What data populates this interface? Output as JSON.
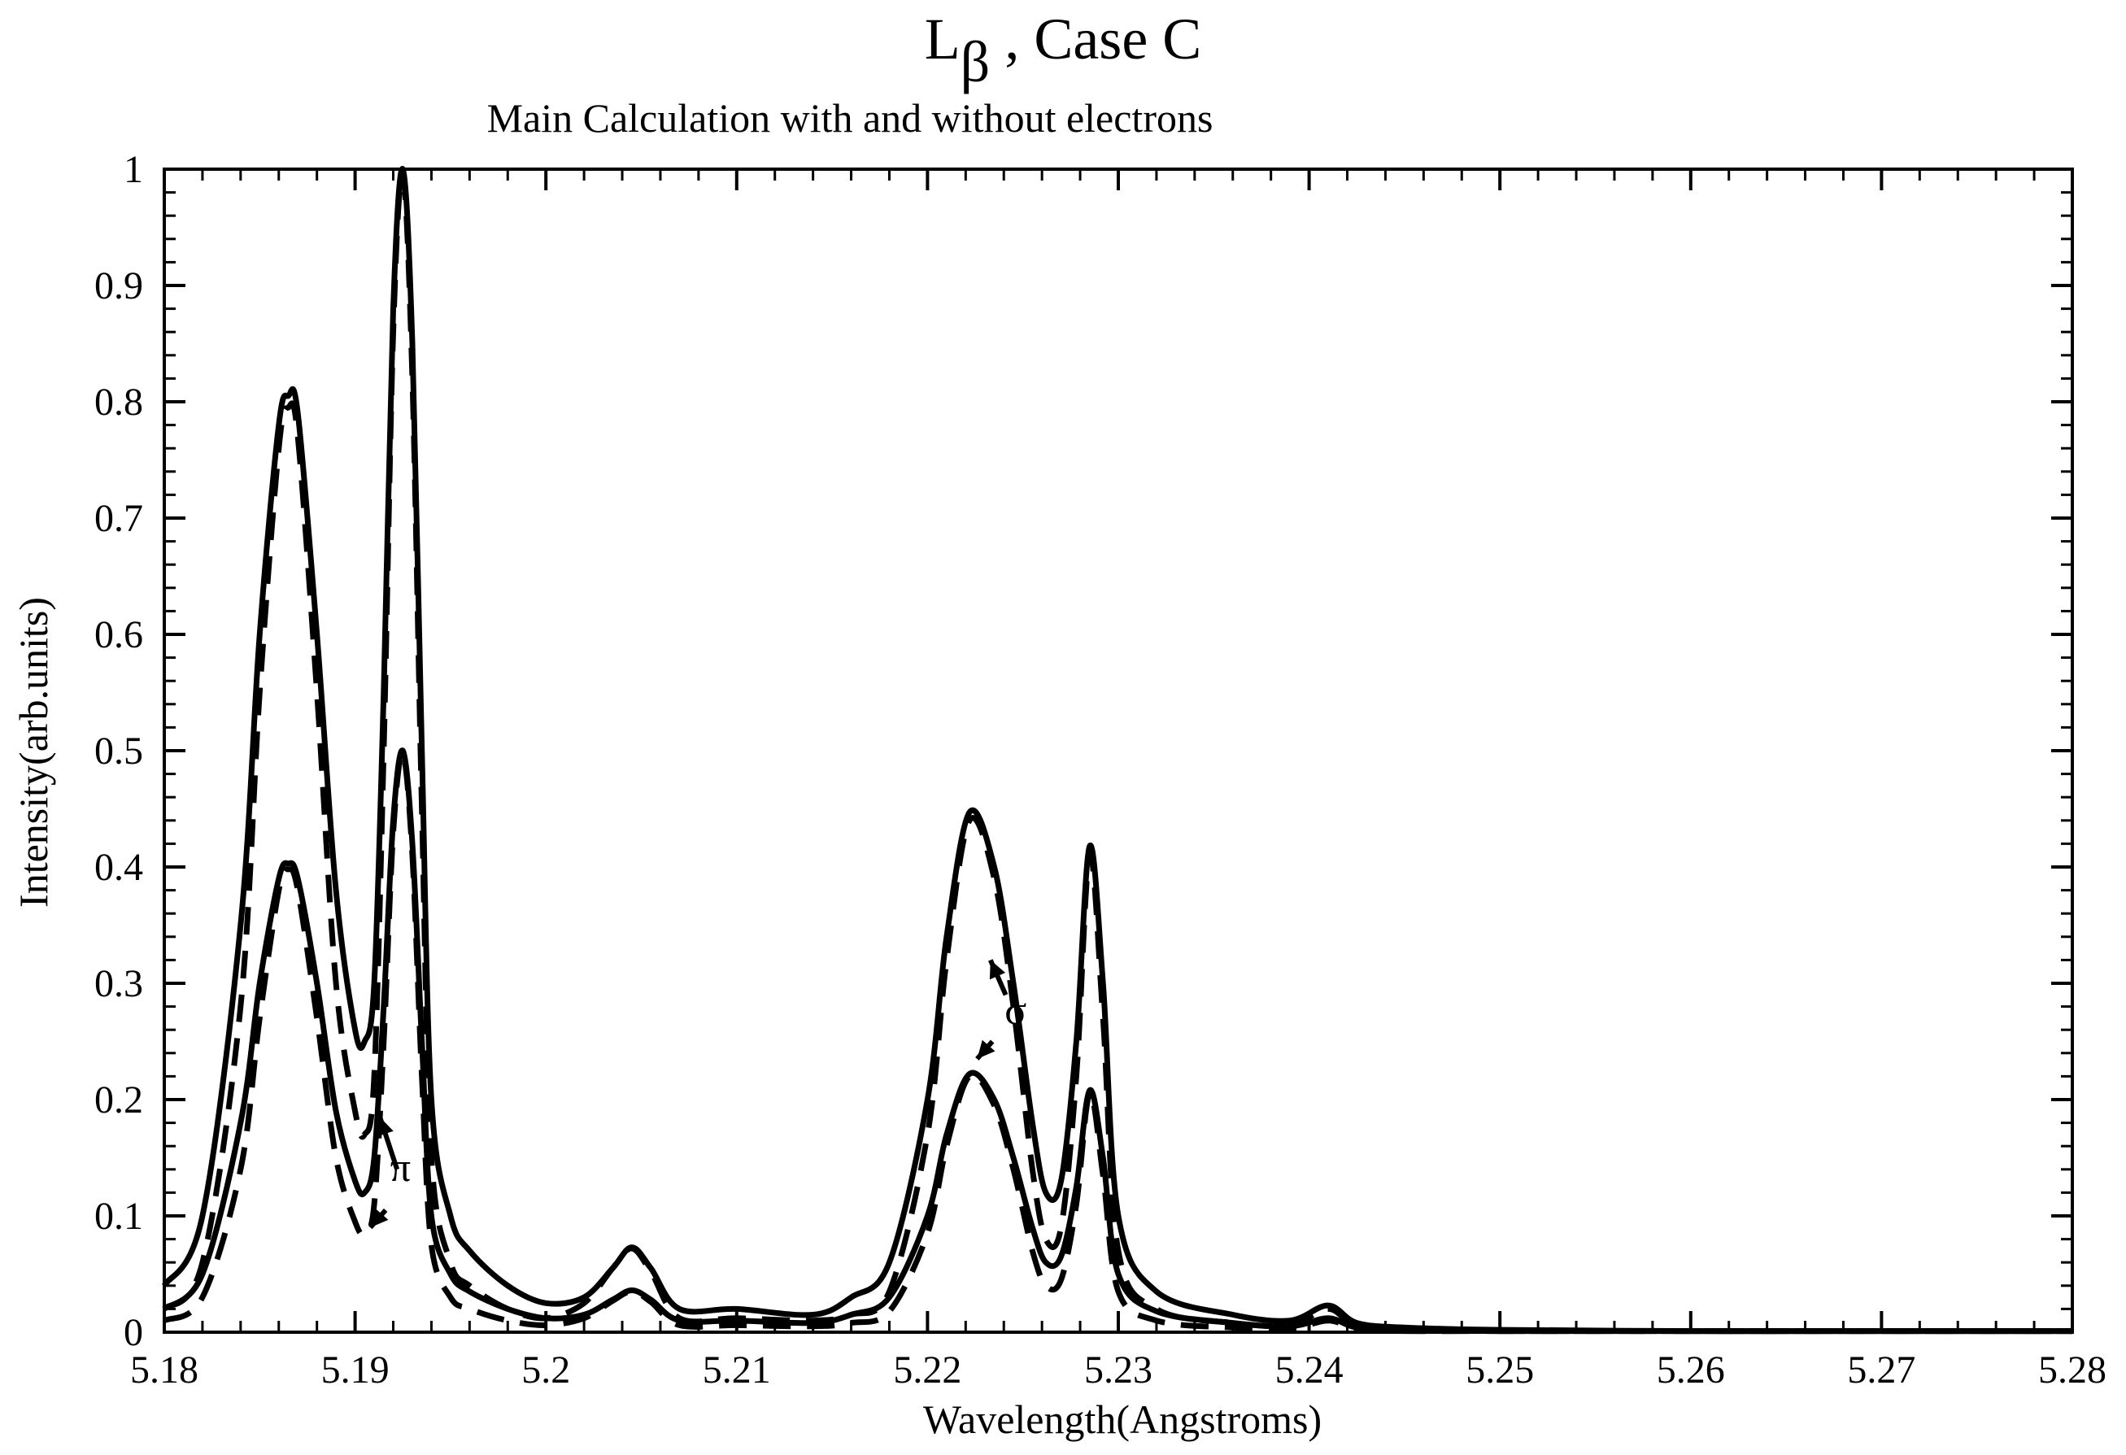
{
  "chart_data": {
    "type": "line",
    "title": "L",
    "title_subscript": "β",
    "title_suffix": " , Case C",
    "subtitle": "Main Calculation with  and without electrons",
    "xlabel": "Wavelength(Angstroms)",
    "ylabel": "Intensity(arb.units)",
    "xlim": [
      5.18,
      5.28
    ],
    "ylim": [
      0,
      1
    ],
    "x_ticks": [
      "5.18",
      "5.19",
      "5.2",
      "5.21",
      "5.22",
      "5.23",
      "5.24",
      "5.25",
      "5.26",
      "5.27",
      "5.28"
    ],
    "y_ticks": [
      "0",
      "0.1",
      "0.2",
      "0.3",
      "0.4",
      "0.5",
      "0.6",
      "0.7",
      "0.8",
      "0.9",
      "1"
    ],
    "grid": false,
    "legend": "none",
    "annotations": [
      {
        "text": "π",
        "x": 5.1915,
        "y": 0.13
      },
      {
        "text": "σ",
        "x": 5.2237,
        "y": 0.265
      }
    ],
    "series": [
      {
        "style": "solid",
        "x": [
          5.18,
          5.182,
          5.184,
          5.185,
          5.186,
          5.1865,
          5.187,
          5.188,
          5.189,
          5.19,
          5.1905,
          5.191,
          5.1915,
          5.192,
          5.1925,
          5.193,
          5.1935,
          5.194,
          5.195,
          5.196,
          5.198,
          5.2,
          5.202,
          5.2035,
          5.2045,
          5.2055,
          5.207,
          5.21,
          5.214,
          5.216,
          5.218,
          5.22,
          5.221,
          5.2222,
          5.2235,
          5.2245,
          5.2255,
          5.2262,
          5.227,
          5.2278,
          5.2285,
          5.2292,
          5.23,
          5.232,
          5.236,
          5.239,
          5.241,
          5.2425,
          5.245,
          5.25,
          5.26,
          5.27,
          5.28
        ],
        "y": [
          0.04,
          0.1,
          0.35,
          0.6,
          0.78,
          0.805,
          0.79,
          0.6,
          0.38,
          0.26,
          0.25,
          0.3,
          0.55,
          0.88,
          1.0,
          0.85,
          0.5,
          0.2,
          0.1,
          0.07,
          0.04,
          0.025,
          0.03,
          0.055,
          0.073,
          0.055,
          0.02,
          0.02,
          0.015,
          0.03,
          0.06,
          0.2,
          0.34,
          0.447,
          0.4,
          0.3,
          0.18,
          0.12,
          0.13,
          0.25,
          0.418,
          0.3,
          0.1,
          0.035,
          0.015,
          0.01,
          0.023,
          0.008,
          0.004,
          0.002,
          0.001,
          0.001,
          0.001
        ]
      },
      {
        "style": "dashed",
        "x": [
          5.18,
          5.182,
          5.184,
          5.185,
          5.186,
          5.1865,
          5.187,
          5.188,
          5.189,
          5.19,
          5.1905,
          5.191,
          5.1915,
          5.192,
          5.1925,
          5.193,
          5.1935,
          5.194,
          5.195,
          5.196,
          5.198,
          5.2,
          5.202,
          5.2035,
          5.2045,
          5.2055,
          5.207,
          5.21,
          5.214,
          5.216,
          5.218,
          5.22,
          5.221,
          5.2222,
          5.2235,
          5.2245,
          5.2255,
          5.2262,
          5.227,
          5.2278,
          5.2285,
          5.2292,
          5.23,
          5.232,
          5.236,
          5.239,
          5.241,
          5.2425,
          5.245,
          5.25,
          5.26,
          5.27,
          5.28
        ],
        "y": [
          0.02,
          0.06,
          0.28,
          0.55,
          0.76,
          0.795,
          0.77,
          0.55,
          0.3,
          0.19,
          0.17,
          0.22,
          0.5,
          0.86,
          0.995,
          0.82,
          0.45,
          0.15,
          0.06,
          0.04,
          0.02,
          0.012,
          0.025,
          0.055,
          0.072,
          0.052,
          0.012,
          0.012,
          0.01,
          0.015,
          0.035,
          0.17,
          0.32,
          0.44,
          0.39,
          0.28,
          0.14,
          0.08,
          0.09,
          0.22,
          0.41,
          0.27,
          0.07,
          0.02,
          0.008,
          0.006,
          0.02,
          0.005,
          0.002,
          0.001,
          0.001,
          0.001,
          0.001
        ]
      },
      {
        "style": "solid",
        "x": [
          5.18,
          5.182,
          5.184,
          5.185,
          5.186,
          5.1865,
          5.187,
          5.188,
          5.189,
          5.19,
          5.1905,
          5.191,
          5.1915,
          5.192,
          5.1925,
          5.193,
          5.1935,
          5.194,
          5.195,
          5.196,
          5.198,
          5.2,
          5.202,
          5.2035,
          5.2045,
          5.2055,
          5.207,
          5.21,
          5.214,
          5.216,
          5.218,
          5.22,
          5.221,
          5.2222,
          5.2235,
          5.2245,
          5.2255,
          5.2262,
          5.227,
          5.2278,
          5.2285,
          5.2292,
          5.23,
          5.232,
          5.236,
          5.239,
          5.241,
          5.2425,
          5.245,
          5.25,
          5.26,
          5.27,
          5.28
        ],
        "y": [
          0.02,
          0.05,
          0.18,
          0.3,
          0.39,
          0.403,
          0.39,
          0.3,
          0.19,
          0.13,
          0.12,
          0.15,
          0.28,
          0.44,
          0.5,
          0.42,
          0.25,
          0.1,
          0.05,
          0.035,
          0.02,
          0.012,
          0.015,
          0.028,
          0.036,
          0.028,
          0.01,
          0.01,
          0.008,
          0.015,
          0.03,
          0.1,
          0.17,
          0.222,
          0.2,
          0.15,
          0.09,
          0.06,
          0.065,
          0.125,
          0.208,
          0.15,
          0.05,
          0.018,
          0.008,
          0.005,
          0.012,
          0.004,
          0.002,
          0.001,
          0.001,
          0.001,
          0.001
        ]
      },
      {
        "style": "dashed",
        "x": [
          5.18,
          5.182,
          5.184,
          5.185,
          5.186,
          5.1865,
          5.187,
          5.188,
          5.189,
          5.19,
          5.1905,
          5.191,
          5.1915,
          5.192,
          5.1925,
          5.193,
          5.1935,
          5.194,
          5.195,
          5.196,
          5.198,
          5.2,
          5.202,
          5.2035,
          5.2045,
          5.2055,
          5.207,
          5.21,
          5.214,
          5.216,
          5.218,
          5.22,
          5.221,
          5.2222,
          5.2235,
          5.2245,
          5.2255,
          5.2262,
          5.227,
          5.2278,
          5.2285,
          5.2292,
          5.23,
          5.232,
          5.236,
          5.239,
          5.241,
          5.2425,
          5.245,
          5.25,
          5.26,
          5.27,
          5.28
        ],
        "y": [
          0.01,
          0.03,
          0.14,
          0.27,
          0.38,
          0.398,
          0.38,
          0.27,
          0.15,
          0.095,
          0.085,
          0.11,
          0.25,
          0.43,
          0.497,
          0.41,
          0.22,
          0.075,
          0.03,
          0.02,
          0.01,
          0.006,
          0.012,
          0.027,
          0.035,
          0.026,
          0.006,
          0.006,
          0.005,
          0.008,
          0.018,
          0.085,
          0.16,
          0.22,
          0.195,
          0.14,
          0.07,
          0.04,
          0.045,
          0.11,
          0.205,
          0.135,
          0.035,
          0.01,
          0.004,
          0.003,
          0.01,
          0.003,
          0.001,
          0.001,
          0.001,
          0.001,
          0.001
        ]
      }
    ]
  }
}
